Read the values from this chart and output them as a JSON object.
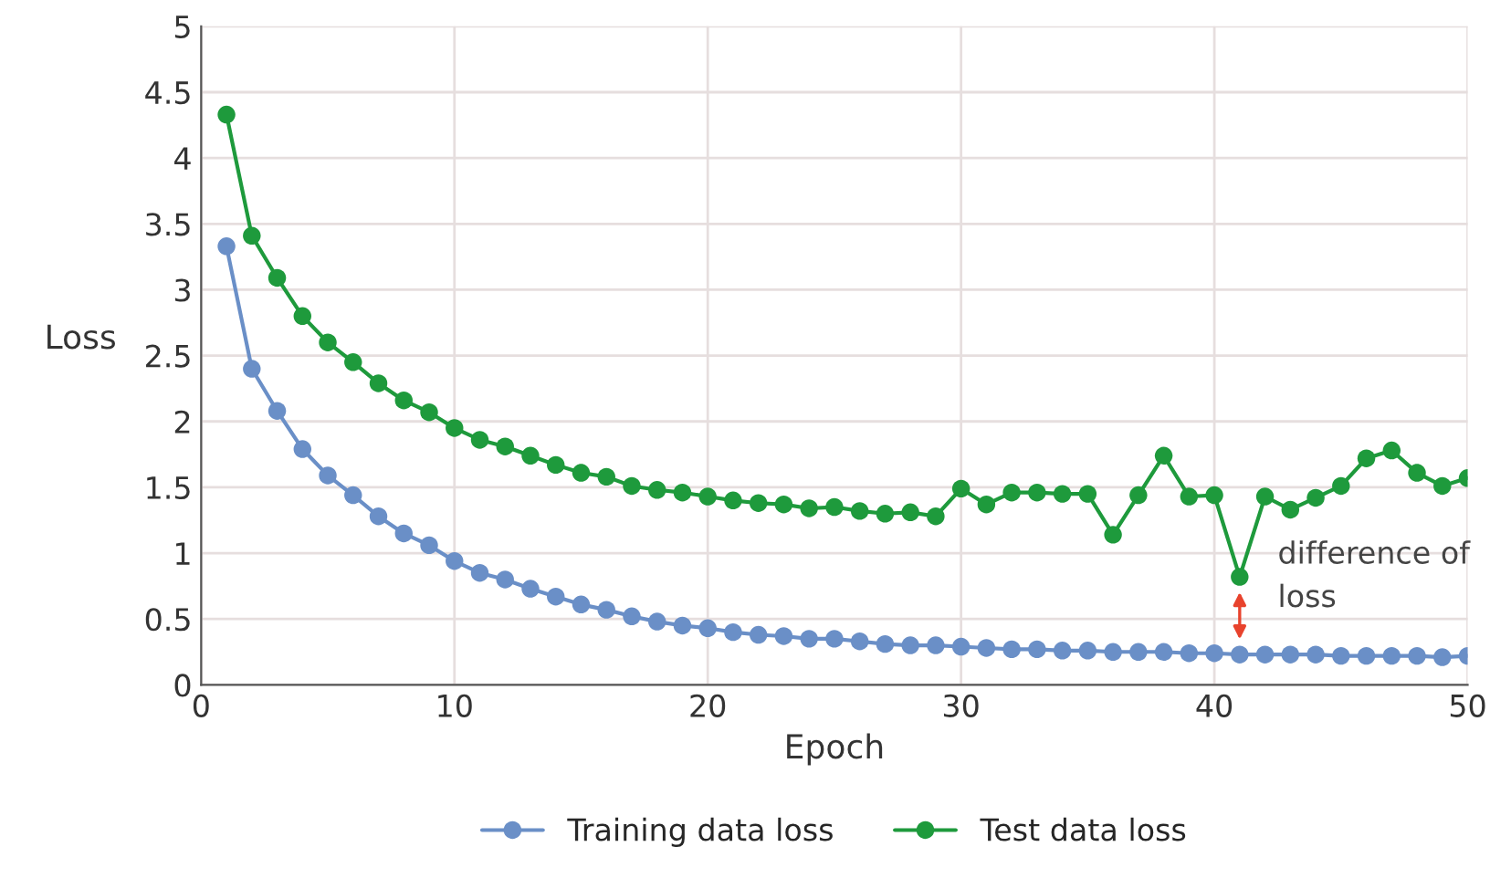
{
  "chart_data": {
    "type": "line",
    "xlabel": "Epoch",
    "ylabel": "Loss",
    "x": [
      1,
      2,
      3,
      4,
      5,
      6,
      7,
      8,
      9,
      10,
      11,
      12,
      13,
      14,
      15,
      16,
      17,
      18,
      19,
      20,
      21,
      22,
      23,
      24,
      25,
      26,
      27,
      28,
      29,
      30,
      31,
      32,
      33,
      34,
      35,
      36,
      37,
      38,
      39,
      40,
      41,
      42,
      43,
      44,
      45,
      46,
      47,
      48,
      49,
      50
    ],
    "series": [
      {
        "name": "Training data loss",
        "color": "#6a8fc7",
        "values": [
          3.33,
          2.4,
          2.08,
          1.79,
          1.59,
          1.44,
          1.28,
          1.15,
          1.06,
          0.94,
          0.85,
          0.8,
          0.73,
          0.67,
          0.61,
          0.57,
          0.52,
          0.48,
          0.45,
          0.43,
          0.4,
          0.38,
          0.37,
          0.35,
          0.35,
          0.33,
          0.31,
          0.3,
          0.3,
          0.29,
          0.28,
          0.27,
          0.27,
          0.26,
          0.26,
          0.25,
          0.25,
          0.25,
          0.24,
          0.24,
          0.23,
          0.23,
          0.23,
          0.23,
          0.22,
          0.22,
          0.22,
          0.22,
          0.21,
          0.22
        ]
      },
      {
        "name": "Test data loss",
        "color": "#1e9a3c",
        "values": [
          4.33,
          3.41,
          3.09,
          2.8,
          2.6,
          2.45,
          2.29,
          2.16,
          2.07,
          1.95,
          1.86,
          1.81,
          1.74,
          1.67,
          1.61,
          1.58,
          1.51,
          1.48,
          1.46,
          1.43,
          1.4,
          1.38,
          1.37,
          1.34,
          1.35,
          1.32,
          1.3,
          1.31,
          1.28,
          1.49,
          1.37,
          1.46,
          1.46,
          1.45,
          1.45,
          1.14,
          1.44,
          1.74,
          1.43,
          1.44,
          0.82,
          1.43,
          1.33,
          1.42,
          1.51,
          1.72,
          1.78,
          1.61,
          1.51,
          1.57
        ]
      }
    ],
    "xlim": [
      0,
      50
    ],
    "xticks": [
      0,
      10,
      20,
      30,
      40,
      50
    ],
    "ylim": [
      0,
      5
    ],
    "yticks": [
      0,
      0.5,
      1,
      1.5,
      2,
      2.5,
      3,
      3.5,
      4,
      4.5,
      5
    ],
    "annotations": [
      {
        "text": "difference of loss",
        "x": 41,
        "y": 0.82
      }
    ],
    "grid": true,
    "legend": "bottom",
    "marker": "circle",
    "line_style": "solid"
  }
}
